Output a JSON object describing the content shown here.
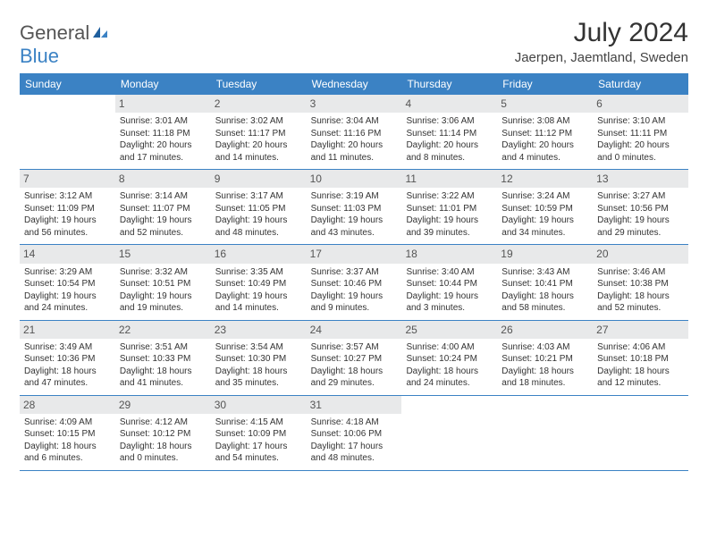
{
  "logo": {
    "general": "General",
    "blue": "Blue"
  },
  "title": "July 2024",
  "location": "Jaerpen, Jaemtland, Sweden",
  "colors": {
    "header_bg": "#3b82c4",
    "header_fg": "#ffffff",
    "daynum_bg": "#e8e9ea",
    "row_border": "#3b82c4",
    "text": "#333333",
    "logo_gray": "#555555",
    "logo_blue": "#3b82c4",
    "page_bg": "#ffffff"
  },
  "typography": {
    "title_fontsize": 30,
    "location_fontsize": 15,
    "weekday_fontsize": 12,
    "daynum_fontsize": 12,
    "body_fontsize": 10,
    "font_family": "Arial"
  },
  "weekdays": [
    "Sunday",
    "Monday",
    "Tuesday",
    "Wednesday",
    "Thursday",
    "Friday",
    "Saturday"
  ],
  "weeks": [
    [
      {
        "day": "",
        "lines": [
          "",
          "",
          "",
          ""
        ]
      },
      {
        "day": "1",
        "lines": [
          "Sunrise: 3:01 AM",
          "Sunset: 11:18 PM",
          "Daylight: 20 hours",
          "and 17 minutes."
        ]
      },
      {
        "day": "2",
        "lines": [
          "Sunrise: 3:02 AM",
          "Sunset: 11:17 PM",
          "Daylight: 20 hours",
          "and 14 minutes."
        ]
      },
      {
        "day": "3",
        "lines": [
          "Sunrise: 3:04 AM",
          "Sunset: 11:16 PM",
          "Daylight: 20 hours",
          "and 11 minutes."
        ]
      },
      {
        "day": "4",
        "lines": [
          "Sunrise: 3:06 AM",
          "Sunset: 11:14 PM",
          "Daylight: 20 hours",
          "and 8 minutes."
        ]
      },
      {
        "day": "5",
        "lines": [
          "Sunrise: 3:08 AM",
          "Sunset: 11:12 PM",
          "Daylight: 20 hours",
          "and 4 minutes."
        ]
      },
      {
        "day": "6",
        "lines": [
          "Sunrise: 3:10 AM",
          "Sunset: 11:11 PM",
          "Daylight: 20 hours",
          "and 0 minutes."
        ]
      }
    ],
    [
      {
        "day": "7",
        "lines": [
          "Sunrise: 3:12 AM",
          "Sunset: 11:09 PM",
          "Daylight: 19 hours",
          "and 56 minutes."
        ]
      },
      {
        "day": "8",
        "lines": [
          "Sunrise: 3:14 AM",
          "Sunset: 11:07 PM",
          "Daylight: 19 hours",
          "and 52 minutes."
        ]
      },
      {
        "day": "9",
        "lines": [
          "Sunrise: 3:17 AM",
          "Sunset: 11:05 PM",
          "Daylight: 19 hours",
          "and 48 minutes."
        ]
      },
      {
        "day": "10",
        "lines": [
          "Sunrise: 3:19 AM",
          "Sunset: 11:03 PM",
          "Daylight: 19 hours",
          "and 43 minutes."
        ]
      },
      {
        "day": "11",
        "lines": [
          "Sunrise: 3:22 AM",
          "Sunset: 11:01 PM",
          "Daylight: 19 hours",
          "and 39 minutes."
        ]
      },
      {
        "day": "12",
        "lines": [
          "Sunrise: 3:24 AM",
          "Sunset: 10:59 PM",
          "Daylight: 19 hours",
          "and 34 minutes."
        ]
      },
      {
        "day": "13",
        "lines": [
          "Sunrise: 3:27 AM",
          "Sunset: 10:56 PM",
          "Daylight: 19 hours",
          "and 29 minutes."
        ]
      }
    ],
    [
      {
        "day": "14",
        "lines": [
          "Sunrise: 3:29 AM",
          "Sunset: 10:54 PM",
          "Daylight: 19 hours",
          "and 24 minutes."
        ]
      },
      {
        "day": "15",
        "lines": [
          "Sunrise: 3:32 AM",
          "Sunset: 10:51 PM",
          "Daylight: 19 hours",
          "and 19 minutes."
        ]
      },
      {
        "day": "16",
        "lines": [
          "Sunrise: 3:35 AM",
          "Sunset: 10:49 PM",
          "Daylight: 19 hours",
          "and 14 minutes."
        ]
      },
      {
        "day": "17",
        "lines": [
          "Sunrise: 3:37 AM",
          "Sunset: 10:46 PM",
          "Daylight: 19 hours",
          "and 9 minutes."
        ]
      },
      {
        "day": "18",
        "lines": [
          "Sunrise: 3:40 AM",
          "Sunset: 10:44 PM",
          "Daylight: 19 hours",
          "and 3 minutes."
        ]
      },
      {
        "day": "19",
        "lines": [
          "Sunrise: 3:43 AM",
          "Sunset: 10:41 PM",
          "Daylight: 18 hours",
          "and 58 minutes."
        ]
      },
      {
        "day": "20",
        "lines": [
          "Sunrise: 3:46 AM",
          "Sunset: 10:38 PM",
          "Daylight: 18 hours",
          "and 52 minutes."
        ]
      }
    ],
    [
      {
        "day": "21",
        "lines": [
          "Sunrise: 3:49 AM",
          "Sunset: 10:36 PM",
          "Daylight: 18 hours",
          "and 47 minutes."
        ]
      },
      {
        "day": "22",
        "lines": [
          "Sunrise: 3:51 AM",
          "Sunset: 10:33 PM",
          "Daylight: 18 hours",
          "and 41 minutes."
        ]
      },
      {
        "day": "23",
        "lines": [
          "Sunrise: 3:54 AM",
          "Sunset: 10:30 PM",
          "Daylight: 18 hours",
          "and 35 minutes."
        ]
      },
      {
        "day": "24",
        "lines": [
          "Sunrise: 3:57 AM",
          "Sunset: 10:27 PM",
          "Daylight: 18 hours",
          "and 29 minutes."
        ]
      },
      {
        "day": "25",
        "lines": [
          "Sunrise: 4:00 AM",
          "Sunset: 10:24 PM",
          "Daylight: 18 hours",
          "and 24 minutes."
        ]
      },
      {
        "day": "26",
        "lines": [
          "Sunrise: 4:03 AM",
          "Sunset: 10:21 PM",
          "Daylight: 18 hours",
          "and 18 minutes."
        ]
      },
      {
        "day": "27",
        "lines": [
          "Sunrise: 4:06 AM",
          "Sunset: 10:18 PM",
          "Daylight: 18 hours",
          "and 12 minutes."
        ]
      }
    ],
    [
      {
        "day": "28",
        "lines": [
          "Sunrise: 4:09 AM",
          "Sunset: 10:15 PM",
          "Daylight: 18 hours",
          "and 6 minutes."
        ]
      },
      {
        "day": "29",
        "lines": [
          "Sunrise: 4:12 AM",
          "Sunset: 10:12 PM",
          "Daylight: 18 hours",
          "and 0 minutes."
        ]
      },
      {
        "day": "30",
        "lines": [
          "Sunrise: 4:15 AM",
          "Sunset: 10:09 PM",
          "Daylight: 17 hours",
          "and 54 minutes."
        ]
      },
      {
        "day": "31",
        "lines": [
          "Sunrise: 4:18 AM",
          "Sunset: 10:06 PM",
          "Daylight: 17 hours",
          "and 48 minutes."
        ]
      },
      {
        "day": "",
        "lines": [
          "",
          "",
          "",
          ""
        ]
      },
      {
        "day": "",
        "lines": [
          "",
          "",
          "",
          ""
        ]
      },
      {
        "day": "",
        "lines": [
          "",
          "",
          "",
          ""
        ]
      }
    ]
  ]
}
